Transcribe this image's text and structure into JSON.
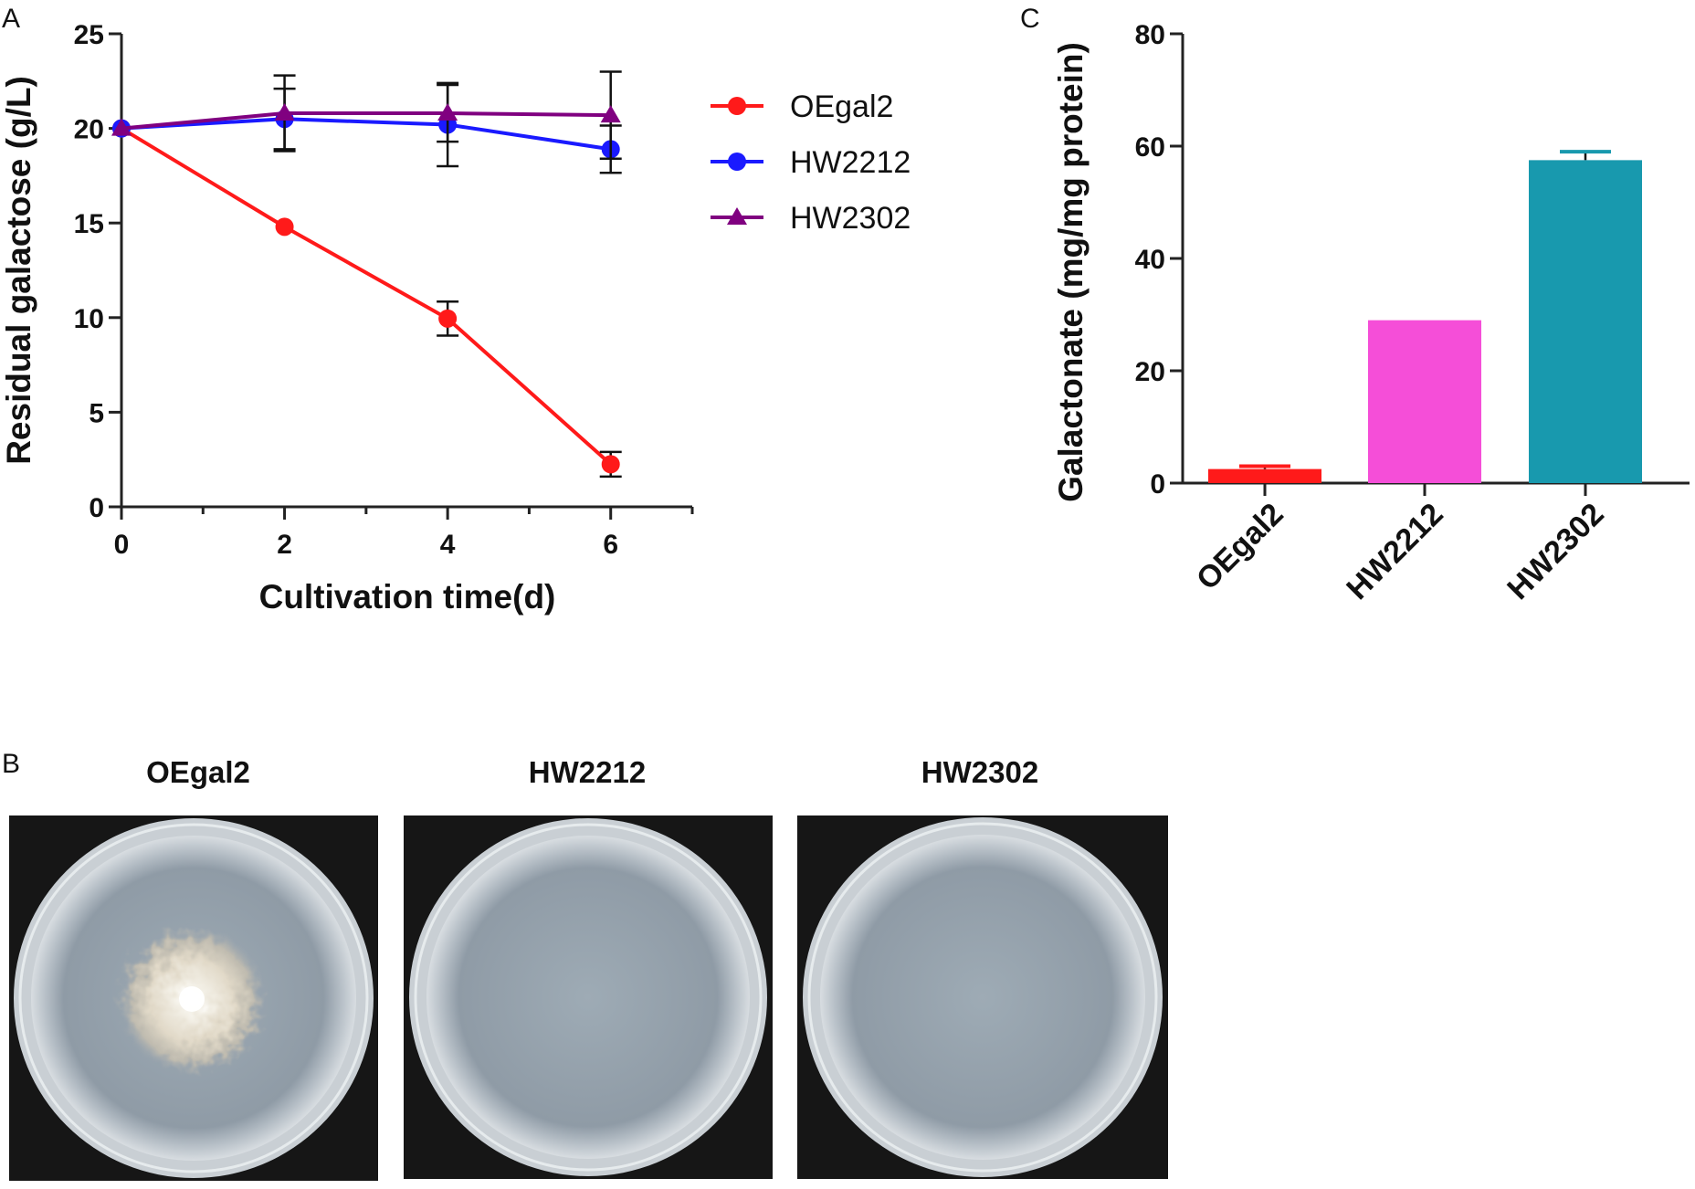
{
  "panels": {
    "a": {
      "letter": "A"
    },
    "b": {
      "letter": "B"
    },
    "c": {
      "letter": "C"
    }
  },
  "chart_data": [
    {
      "panel": "A",
      "type": "line",
      "xlabel": "Cultivation time(d)",
      "ylabel": "Residual galactose (g/L)",
      "xlim": [
        0,
        7
      ],
      "ylim": [
        0,
        25
      ],
      "x_ticks": [
        0,
        2,
        4,
        6
      ],
      "y_ticks": [
        0,
        5,
        10,
        15,
        20,
        25
      ],
      "x_minor_ticks": [
        1,
        3,
        5,
        7
      ],
      "grid": false,
      "legend_position": "right",
      "x": [
        0,
        2,
        4,
        6
      ],
      "series": [
        {
          "name": "OEgal2",
          "marker": "circle",
          "color": "#ff1a1a",
          "values": [
            20.0,
            14.8,
            9.95,
            2.25
          ],
          "errors": [
            0,
            0,
            0.9,
            0.65
          ]
        },
        {
          "name": "HW2212",
          "marker": "circle",
          "color": "#1a1aff",
          "values": [
            20.0,
            20.5,
            20.2,
            18.9
          ],
          "errors": [
            0,
            1.6,
            2.2,
            1.25
          ]
        },
        {
          "name": "HW2302",
          "marker": "triangle",
          "color": "#800080",
          "values": [
            20.0,
            20.8,
            20.8,
            20.7
          ],
          "errors": [
            0,
            2.0,
            1.5,
            2.3
          ]
        }
      ]
    },
    {
      "panel": "C",
      "type": "bar",
      "ylabel": "Galactonate (mg/mg protein)",
      "ylim": [
        0,
        80
      ],
      "y_ticks": [
        0,
        20,
        40,
        60,
        80
      ],
      "grid": false,
      "categories": [
        "OEgal2",
        "HW2212",
        "HW2302"
      ],
      "values": [
        2.5,
        29.0,
        57.5
      ],
      "errors": [
        0.5,
        0,
        1.5
      ],
      "colors": [
        "#ff1a1a",
        "#f54ed8",
        "#1899ae"
      ]
    }
  ],
  "plates": [
    {
      "title": "OEgal2",
      "growth": true
    },
    {
      "title": "HW2212",
      "growth": false
    },
    {
      "title": "HW2302",
      "growth": false
    }
  ]
}
